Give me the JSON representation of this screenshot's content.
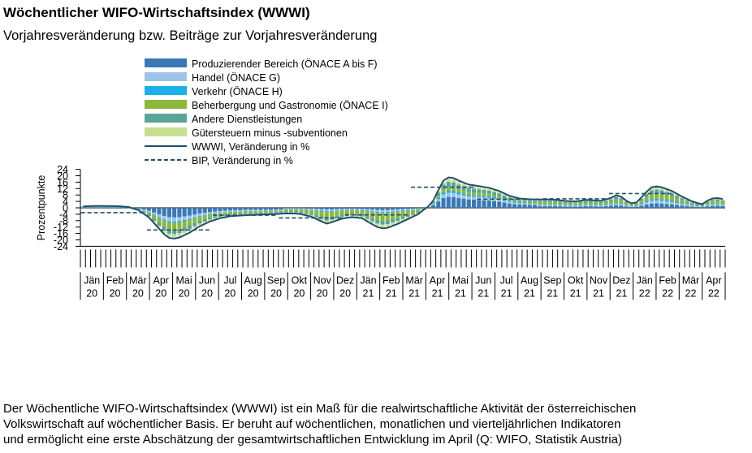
{
  "title": "Wöchentlicher WIFO-Wirtschaftsindex (WWWI)",
  "subtitle": "Vorjahresveränderung bzw. Beiträge zur Vorjahresveränderung",
  "footnote": [
    "Der Wöchentliche WIFO-Wirtschaftsindex (WWWI) ist ein Maß für die realwirtschaftliche Aktivität der österreichischen",
    "Volkswirtschaft auf wöchentlicher Basis. Er beruht auf wöchentlichen, monatlichen und vierteljährlichen Indikatoren",
    "und ermöglicht eine erste Abschätzung der gesamtwirtschaftlichen Entwicklung im April (Q: WIFO, Statistik Austria)"
  ],
  "colors": {
    "produzierend": "#3a78b5",
    "handel": "#9dc3e6",
    "verkehr": "#1cb0e6",
    "beherbergung": "#8db63c",
    "dienstleistungen": "#5aa49a",
    "guetersteuern": "#c6df8f",
    "wwwi": "#1f4e6e",
    "bip": "#1f4e6e",
    "axis": "#000000"
  },
  "chart_data": {
    "type": "bar",
    "ylabel": "Prozentpunkte",
    "ylim": [
      -24,
      24
    ],
    "yticks": [
      24,
      20,
      16,
      12,
      8,
      4,
      0,
      -4,
      -8,
      -12,
      -16,
      -20,
      -24
    ],
    "n_weeks": 122,
    "months": [
      {
        "label": "Jän",
        "year": "20"
      },
      {
        "label": "Feb",
        "year": "20"
      },
      {
        "label": "Mär",
        "year": "20"
      },
      {
        "label": "Apr",
        "year": "20"
      },
      {
        "label": "Mai",
        "year": "20"
      },
      {
        "label": "Jun",
        "year": "20"
      },
      {
        "label": "Jul",
        "year": "20"
      },
      {
        "label": "Aug",
        "year": "20"
      },
      {
        "label": "Sep",
        "year": "20"
      },
      {
        "label": "Okt",
        "year": "20"
      },
      {
        "label": "Nov",
        "year": "20"
      },
      {
        "label": "Dez",
        "year": "20"
      },
      {
        "label": "Jän",
        "year": "21"
      },
      {
        "label": "Feb",
        "year": "21"
      },
      {
        "label": "Mär",
        "year": "21"
      },
      {
        "label": "Apr",
        "year": "21"
      },
      {
        "label": "Mai",
        "year": "21"
      },
      {
        "label": "Jun",
        "year": "21"
      },
      {
        "label": "Jul",
        "year": "21"
      },
      {
        "label": "Aug",
        "year": "21"
      },
      {
        "label": "Sep",
        "year": "21"
      },
      {
        "label": "Okt",
        "year": "21"
      },
      {
        "label": "Nov",
        "year": "21"
      },
      {
        "label": "Dez",
        "year": "21"
      },
      {
        "label": "Jän",
        "year": "22"
      },
      {
        "label": "Feb",
        "year": "22"
      },
      {
        "label": "Mär",
        "year": "22"
      },
      {
        "label": "Apr",
        "year": "22"
      }
    ],
    "legend": [
      {
        "label": "Produzierender Bereich (ÖNACE A bis F)",
        "kind": "bar",
        "color": "#3a78b5"
      },
      {
        "label": "Handel (ÖNACE G)",
        "kind": "bar",
        "color": "#9dc3e6"
      },
      {
        "label": "Verkehr (ÖNACE H)",
        "kind": "bar",
        "color": "#1cb0e6"
      },
      {
        "label": "Beherbergung und Gastronomie (ÖNACE I)",
        "kind": "bar",
        "color": "#8db63c"
      },
      {
        "label": "Andere Dienstleistungen",
        "kind": "bar",
        "color": "#5aa49a"
      },
      {
        "label": "Gütersteuern minus -subventionen",
        "kind": "bar",
        "color": "#c6df8f"
      },
      {
        "label": "WWWI, Veränderung in %",
        "kind": "line",
        "color": "#1f4e6e"
      },
      {
        "label": "BIP, Veränderung in %",
        "kind": "dashed",
        "color": "#1f4e6e"
      }
    ],
    "wwwi_keypoints": [
      [
        0,
        0.9
      ],
      [
        3,
        1.2
      ],
      [
        7,
        1.0
      ],
      [
        9,
        0.5
      ],
      [
        11,
        -1.5
      ],
      [
        13,
        -6
      ],
      [
        15,
        -13
      ],
      [
        16,
        -16.5
      ],
      [
        17,
        -18.8
      ],
      [
        18,
        -19.2
      ],
      [
        19,
        -18.5
      ],
      [
        21,
        -15.5
      ],
      [
        23,
        -11.5
      ],
      [
        25,
        -8.5
      ],
      [
        27,
        -6.5
      ],
      [
        29,
        -5.2
      ],
      [
        32,
        -4.6
      ],
      [
        35,
        -4.2
      ],
      [
        38,
        -3.9
      ],
      [
        40,
        -3.5
      ],
      [
        42,
        -3.6
      ],
      [
        43,
        -4.0
      ],
      [
        45,
        -5.5
      ],
      [
        47,
        -8.5
      ],
      [
        48,
        -9.8
      ],
      [
        49,
        -9.0
      ],
      [
        51,
        -6.8
      ],
      [
        53,
        -5.8
      ],
      [
        55,
        -6.5
      ],
      [
        56,
        -8.5
      ],
      [
        58,
        -12.0
      ],
      [
        59,
        -12.8
      ],
      [
        60,
        -12.5
      ],
      [
        62,
        -10.0
      ],
      [
        64,
        -7.0
      ],
      [
        66,
        -4.0
      ],
      [
        67,
        -1.5
      ],
      [
        68,
        0.8
      ],
      [
        69,
        4.5
      ],
      [
        70,
        11.0
      ],
      [
        71,
        17.0
      ],
      [
        72,
        19.0
      ],
      [
        73,
        18.6
      ],
      [
        74,
        17.0
      ],
      [
        76,
        14.5
      ],
      [
        78,
        13.5
      ],
      [
        80,
        12.5
      ],
      [
        82,
        10.5
      ],
      [
        84,
        7.5
      ],
      [
        86,
        5.8
      ],
      [
        88,
        5.3
      ],
      [
        91,
        5.2
      ],
      [
        93,
        5.0
      ],
      [
        95,
        4.3
      ],
      [
        97,
        4.0
      ],
      [
        99,
        4.9
      ],
      [
        101,
        4.6
      ],
      [
        102,
        4.3
      ],
      [
        104,
        6.2
      ],
      [
        105,
        7.8
      ],
      [
        106,
        7.0
      ],
      [
        107,
        4.5
      ],
      [
        108,
        2.8
      ],
      [
        109,
        3.4
      ],
      [
        110,
        6.5
      ],
      [
        111,
        10.0
      ],
      [
        112,
        12.8
      ],
      [
        113,
        13.3
      ],
      [
        114,
        12.8
      ],
      [
        116,
        10.5
      ],
      [
        118,
        7.0
      ],
      [
        120,
        4.0
      ],
      [
        121,
        3.0
      ],
      [
        122,
        2.3
      ],
      [
        123,
        4.5
      ],
      [
        124,
        5.8
      ],
      [
        125,
        6.1
      ],
      [
        126,
        5.5
      ]
    ],
    "bip_segments": [
      {
        "from": 0,
        "to": 12,
        "value": -3.0
      },
      {
        "from": 13,
        "to": 25,
        "value": -13.8
      },
      {
        "from": 26,
        "to": 38,
        "value": -4.6
      },
      {
        "from": 39,
        "to": 51,
        "value": -6.3
      },
      {
        "from": 52,
        "to": 64,
        "value": -4.4
      },
      {
        "from": 65,
        "to": 77,
        "value": 12.9
      },
      {
        "from": 78,
        "to": 90,
        "value": 5.4
      },
      {
        "from": 91,
        "to": 103,
        "value": 5.6
      },
      {
        "from": 104,
        "to": 116,
        "value": 8.9
      }
    ]
  }
}
